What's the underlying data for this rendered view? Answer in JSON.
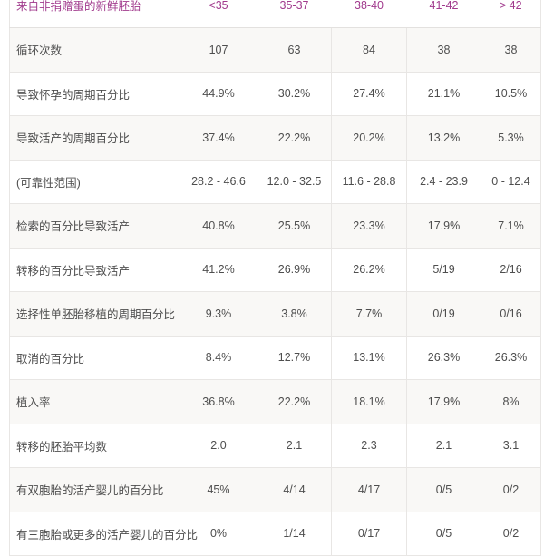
{
  "table": {
    "header": {
      "title": "来自非捐赠蛋的新鲜胚胎",
      "columns": [
        "<35",
        "35-37",
        "38-40",
        "41-42",
        "> 42"
      ]
    },
    "rows": [
      {
        "label": "循环次数",
        "values": [
          "107",
          "63",
          "84",
          "38",
          "38"
        ]
      },
      {
        "label": "导致怀孕的周期百分比",
        "values": [
          "44.9%",
          "30.2%",
          "27.4%",
          "21.1%",
          "10.5%"
        ]
      },
      {
        "label": "导致活产的周期百分比",
        "values": [
          "37.4%",
          "22.2%",
          "20.2%",
          "13.2%",
          "5.3%"
        ]
      },
      {
        "label": "(可靠性范围)",
        "values": [
          "28.2 - 46.6",
          "12.0 - 32.5",
          "11.6 - 28.8",
          "2.4 - 23.9",
          "0 - 12.4"
        ]
      },
      {
        "label": "检索的百分比导致活产",
        "values": [
          "40.8%",
          "25.5%",
          "23.3%",
          "17.9%",
          "7.1%"
        ]
      },
      {
        "label": "转移的百分比导致活产",
        "values": [
          "41.2%",
          "26.9%",
          "26.2%",
          "5/19",
          "2/16"
        ]
      },
      {
        "label": "选择性单胚胎移植的周期百分比",
        "values": [
          "9.3%",
          "3.8%",
          "7.7%",
          "0/19",
          "0/16"
        ]
      },
      {
        "label": "取消的百分比",
        "values": [
          "8.4%",
          "12.7%",
          "13.1%",
          "26.3%",
          "26.3%"
        ]
      },
      {
        "label": "植入率",
        "values": [
          "36.8%",
          "22.2%",
          "18.1%",
          "17.9%",
          "8%"
        ]
      },
      {
        "label": "转移的胚胎平均数",
        "values": [
          "2.0",
          "2.1",
          "2.3",
          "2.1",
          "3.1"
        ]
      },
      {
        "label": "有双胞胎的活产婴儿的百分比",
        "values": [
          "45%",
          "4/14",
          "4/17",
          "0/5",
          "0/2"
        ]
      },
      {
        "label": "有三胞胎或更多的活产婴儿的百分比",
        "values": [
          "0%",
          "1/14",
          "0/17",
          "0/5",
          "0/2"
        ]
      }
    ],
    "colors": {
      "header_text": "#a13a8d",
      "body_text": "#4e4e4e",
      "alt_row_bg": "#f9f8f6",
      "border": "#e8e6e4"
    }
  }
}
